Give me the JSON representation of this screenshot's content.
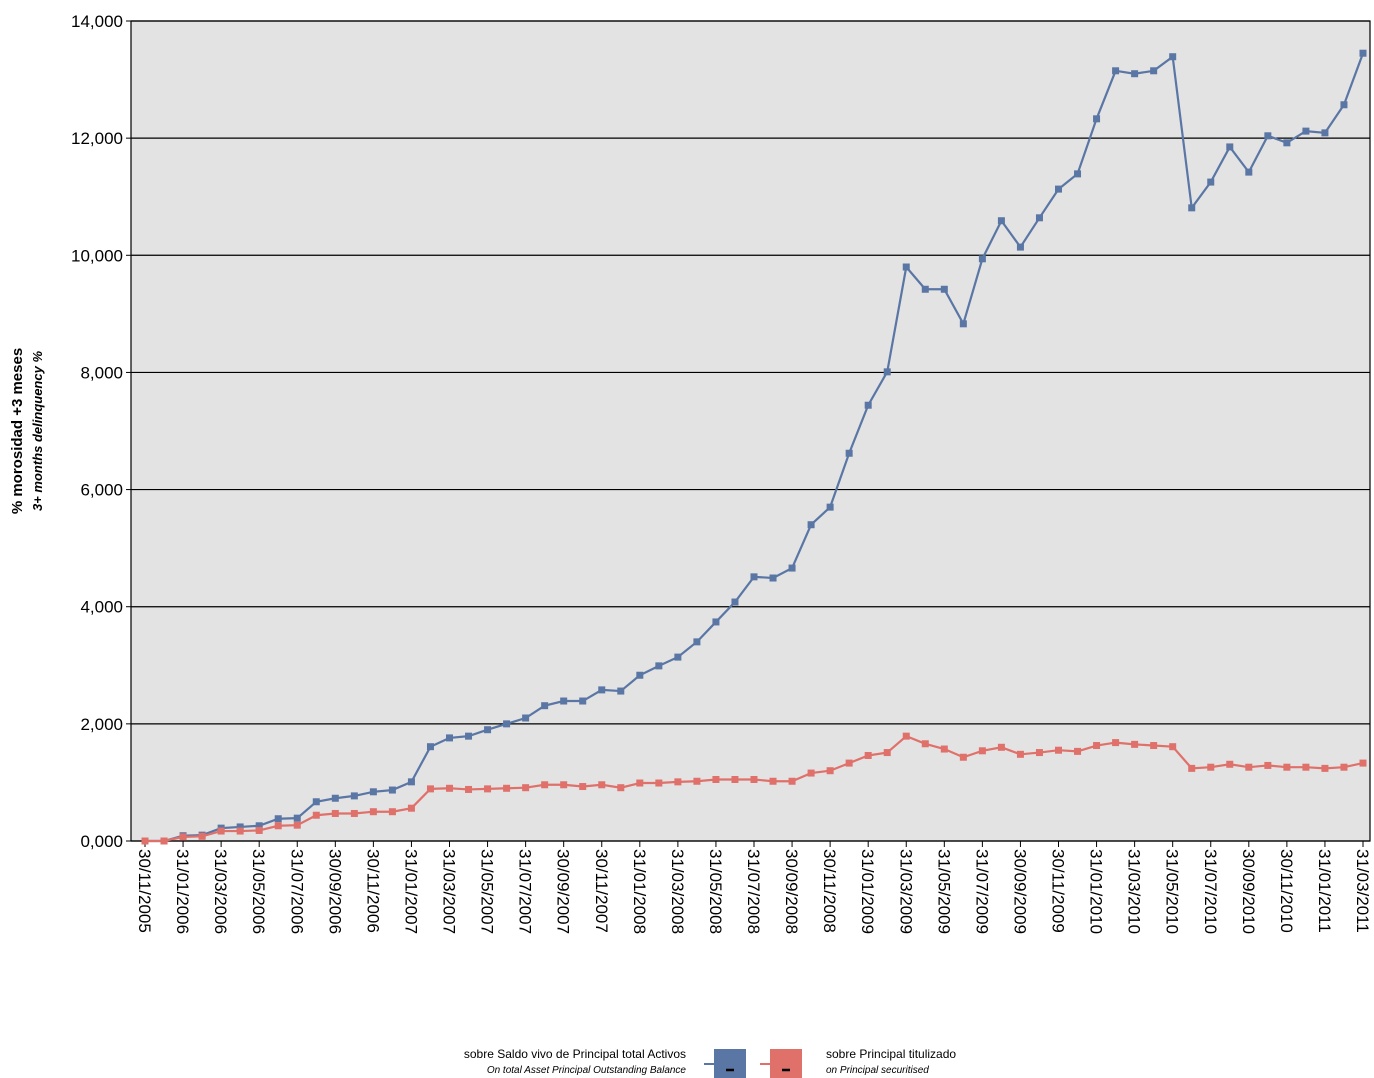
{
  "chart_data": {
    "type": "line",
    "y_label": "% morosidad +3 meses",
    "y_label_en": "3+ months delinquency %",
    "categories": [
      "30/11/2005",
      null,
      "31/01/2006",
      null,
      "31/03/2006",
      null,
      "31/05/2006",
      null,
      "31/07/2006",
      null,
      "30/09/2006",
      null,
      "30/11/2006",
      null,
      "31/01/2007",
      null,
      "31/03/2007",
      null,
      "31/05/2007",
      null,
      "31/07/2007",
      null,
      "30/09/2007",
      null,
      "30/11/2007",
      null,
      "31/01/2008",
      null,
      "31/03/2008",
      null,
      "31/05/2008",
      null,
      "31/07/2008",
      null,
      "30/09/2008",
      null,
      "30/11/2008",
      null,
      "31/01/2009",
      null,
      "31/03/2009",
      null,
      "31/05/2009",
      null,
      "31/07/2009",
      null,
      "30/09/2009",
      null,
      "30/11/2009",
      null,
      "31/01/2010",
      null,
      "31/03/2010",
      null,
      "31/05/2010",
      null,
      "31/07/2010",
      null,
      "30/09/2010",
      null,
      "30/11/2010",
      null,
      "31/01/2011",
      null,
      "31/03/2011"
    ],
    "series": [
      {
        "name": "sobre Saldo vivo de Principal total Activos",
        "name_en": "On total Asset Principal Outstanding Balance",
        "color": "#5a76a5",
        "values": [
          0.0,
          0.0,
          0.09,
          0.1,
          0.22,
          0.24,
          0.26,
          0.38,
          0.39,
          0.67,
          0.73,
          0.77,
          0.84,
          0.87,
          1.01,
          1.61,
          1.76,
          1.79,
          1.9,
          2.0,
          2.1,
          2.31,
          2.39,
          2.39,
          2.58,
          2.56,
          2.83,
          2.99,
          3.14,
          3.4,
          3.74,
          4.08,
          4.51,
          4.49,
          4.66,
          5.4,
          5.7,
          6.62,
          7.44,
          8.01,
          9.8,
          9.42,
          9.42,
          8.83,
          9.94,
          10.59,
          10.14,
          10.64,
          11.13,
          11.39,
          12.33,
          13.15,
          13.1,
          13.15,
          13.39,
          10.81,
          11.25,
          11.85,
          11.42,
          12.04,
          11.92,
          12.12,
          12.09,
          12.57,
          13.45
        ]
      },
      {
        "name": "sobre Principal titulizado",
        "name_en": "on Principal securitised",
        "color": "#e0706a",
        "values": [
          0.0,
          0.0,
          0.07,
          0.08,
          0.17,
          0.17,
          0.18,
          0.26,
          0.27,
          0.44,
          0.47,
          0.47,
          0.5,
          0.5,
          0.56,
          0.89,
          0.9,
          0.88,
          0.89,
          0.9,
          0.91,
          0.96,
          0.96,
          0.93,
          0.96,
          0.91,
          0.99,
          0.99,
          1.01,
          1.02,
          1.05,
          1.05,
          1.05,
          1.02,
          1.02,
          1.16,
          1.2,
          1.33,
          1.46,
          1.51,
          1.79,
          1.66,
          1.57,
          1.43,
          1.54,
          1.6,
          1.48,
          1.51,
          1.55,
          1.53,
          1.63,
          1.68,
          1.65,
          1.63,
          1.61,
          1.24,
          1.26,
          1.31,
          1.26,
          1.29,
          1.26,
          1.26,
          1.24,
          1.26,
          1.33
        ]
      }
    ],
    "ylim": [
      0,
      14
    ],
    "yticks": [
      {
        "value": 0,
        "label": "0,000"
      },
      {
        "value": 2,
        "label": "2,000"
      },
      {
        "value": 4,
        "label": "4,000"
      },
      {
        "value": 6,
        "label": "6,000"
      },
      {
        "value": 8,
        "label": "8,000"
      },
      {
        "value": 10,
        "label": "10,000"
      },
      {
        "value": 12,
        "label": "12,000"
      },
      {
        "value": 14,
        "label": "14,000"
      }
    ],
    "grid": true,
    "background": "#e3e3e3",
    "legend": "bottom"
  }
}
